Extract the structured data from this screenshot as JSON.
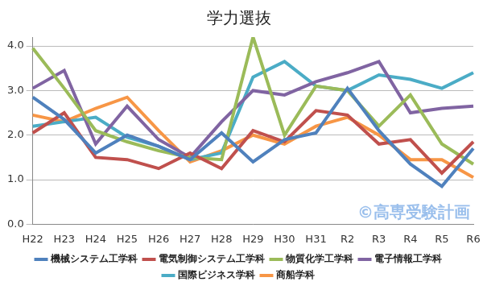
{
  "chart_data": {
    "type": "line",
    "title": "学力選抜",
    "categories": [
      "H22",
      "H23",
      "H24",
      "H25",
      "H26",
      "H27",
      "H28",
      "H29",
      "H30",
      "H31",
      "R2",
      "R3",
      "R4",
      "R5",
      "R6"
    ],
    "series": [
      {
        "name": "機械システム工学科",
        "color": "#4f81bd",
        "values": [
          2.85,
          2.35,
          1.6,
          2.0,
          1.75,
          1.45,
          2.05,
          1.4,
          1.9,
          2.05,
          3.05,
          2.1,
          1.35,
          0.85,
          1.7
        ]
      },
      {
        "name": "電気制御システム工学科",
        "color": "#c0504d",
        "values": [
          2.05,
          2.5,
          1.5,
          1.45,
          1.25,
          1.6,
          1.25,
          2.1,
          1.85,
          2.55,
          2.45,
          1.8,
          1.9,
          1.15,
          1.85
        ]
      },
      {
        "name": "物質化学工学科",
        "color": "#9bbb59",
        "values": [
          3.95,
          3.05,
          2.1,
          1.85,
          1.65,
          1.5,
          1.45,
          4.2,
          2.0,
          3.1,
          3.0,
          2.2,
          2.9,
          1.8,
          1.35
        ]
      },
      {
        "name": "電子情報工学科",
        "color": "#8064a2",
        "values": [
          3.05,
          3.45,
          1.8,
          2.65,
          1.9,
          1.5,
          2.3,
          3.0,
          2.9,
          3.2,
          3.4,
          3.65,
          2.5,
          2.6,
          2.65
        ]
      },
      {
        "name": "国際ビジネス学科",
        "color": "#4bacc6",
        "values": [
          2.2,
          2.3,
          2.4,
          1.95,
          1.75,
          1.45,
          1.6,
          3.3,
          3.65,
          3.1,
          3.0,
          3.35,
          3.25,
          3.05,
          3.4
        ]
      },
      {
        "name": "商船学科",
        "color": "#f79646",
        "values": [
          2.45,
          2.3,
          2.6,
          2.85,
          2.1,
          1.4,
          1.65,
          2.0,
          1.8,
          2.2,
          2.4,
          2.0,
          1.45,
          1.45,
          1.05
        ]
      }
    ],
    "ylim": [
      0,
      4.2
    ],
    "yticks": [
      {
        "value": 0,
        "label": "0.0"
      },
      {
        "value": 1,
        "label": "1.0"
      },
      {
        "value": 2,
        "label": "2.0"
      },
      {
        "value": 3,
        "label": "3.0"
      },
      {
        "value": 4,
        "label": "4.0"
      }
    ],
    "grid": true,
    "legend": "bottom",
    "annotations": [
      "©高専受験計画"
    ]
  }
}
